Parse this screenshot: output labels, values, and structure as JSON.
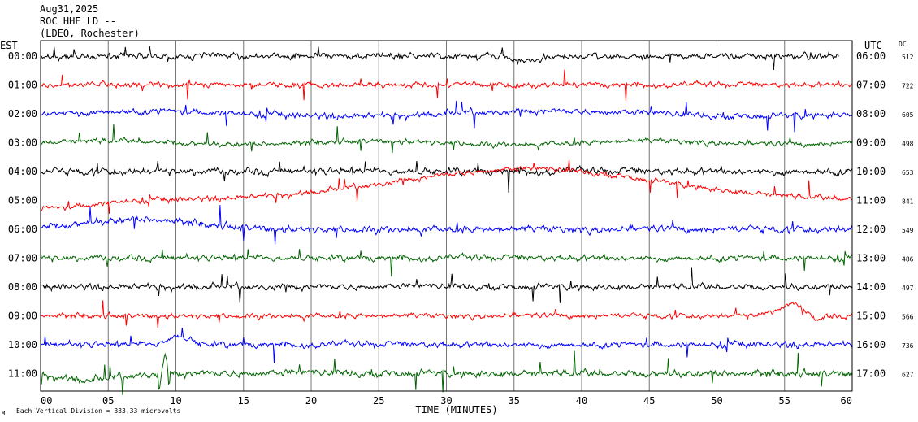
{
  "header": {
    "date": "Aug31,2025",
    "station": "ROC HHE LD --",
    "network": "(LDEO, Rochester)"
  },
  "chart_data": {
    "type": "line",
    "title": "",
    "left_axis_label": "EST",
    "right_axis_label": "UTC",
    "dc_label": "DC",
    "xlabel": "TIME (MINUTES)",
    "x_ticks": [
      "00",
      "05",
      "10",
      "15",
      "20",
      "25",
      "30",
      "35",
      "40",
      "45",
      "50",
      "55",
      "60"
    ],
    "xlim": [
      0,
      60
    ],
    "grid": true,
    "footer": "Each Vertical Division =  333.33 microvolts",
    "footer_symbol": "M",
    "colors": [
      "#000000",
      "#ff0000",
      "#0000ff",
      "#006400"
    ],
    "rows": [
      {
        "est": "00:00",
        "utc": "06:00",
        "dc": "512"
      },
      {
        "est": "01:00",
        "utc": "07:00",
        "dc": "722"
      },
      {
        "est": "02:00",
        "utc": "08:00",
        "dc": "605"
      },
      {
        "est": "03:00",
        "utc": "09:00",
        "dc": "498"
      },
      {
        "est": "04:00",
        "utc": "10:00",
        "dc": "653"
      },
      {
        "est": "05:00",
        "utc": "11:00",
        "dc": "841"
      },
      {
        "est": "06:00",
        "utc": "12:00",
        "dc": "549"
      },
      {
        "est": "07:00",
        "utc": "13:00",
        "dc": "486"
      },
      {
        "est": "08:00",
        "utc": "14:00",
        "dc": "497"
      },
      {
        "est": "09:00",
        "utc": "15:00",
        "dc": "566"
      },
      {
        "est": "10:00",
        "utc": "16:00",
        "dc": "736"
      },
      {
        "est": "11:00",
        "utc": "17:00",
        "dc": "627"
      }
    ]
  }
}
